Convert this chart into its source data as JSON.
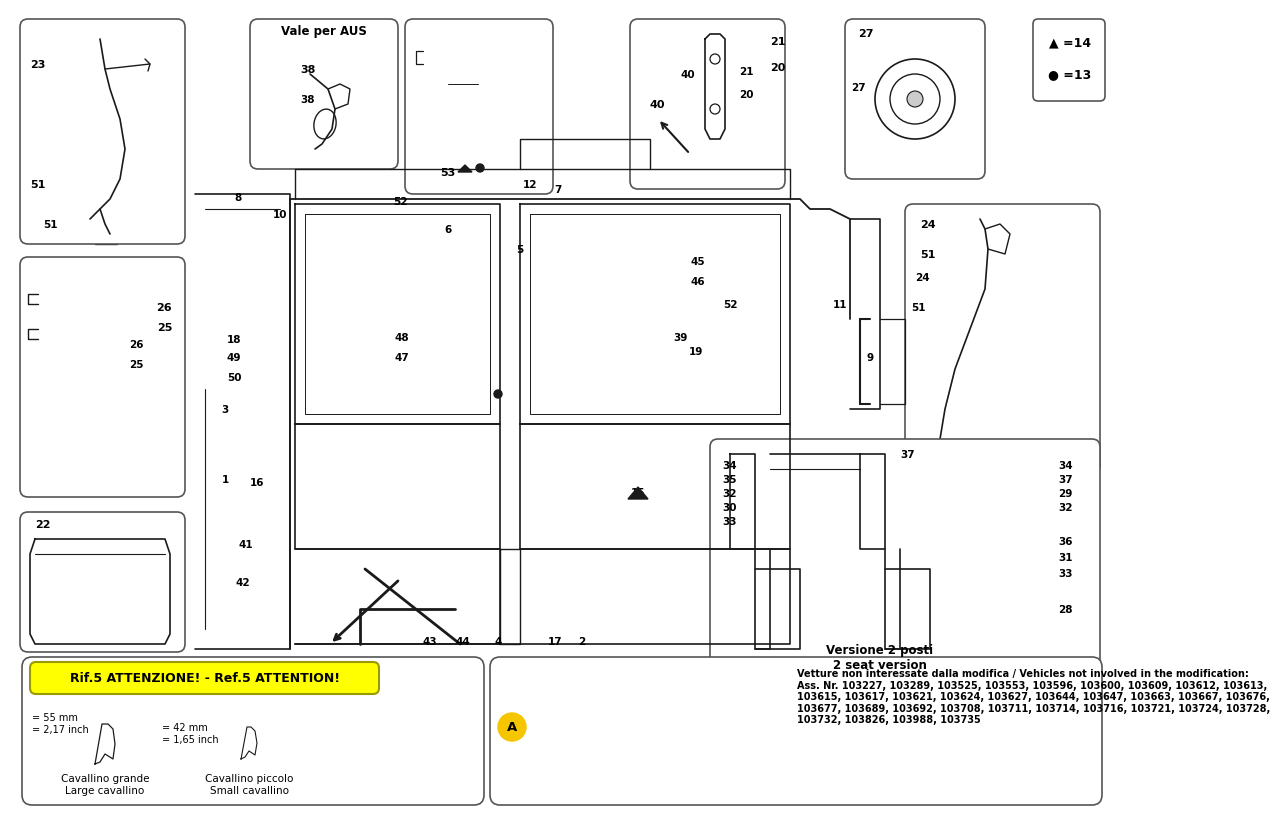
{
  "bg_color": "#ffffff",
  "line_color": "#1a1a1a",
  "gray_line": "#555555",
  "attention_text": "Rif.5 ATTENZIONE! - Ref.5 ATTENTION!",
  "attention_bg": "#ffff00",
  "cavallino_grande_dims": "= 55 mm\n= 2,17 inch",
  "cavallino_piccolo_dims": "= 42 mm\n= 1,65 inch",
  "cavallino_grande_label": "Cavallino grande\nLarge cavallino",
  "cavallino_piccolo_label": "Cavallino piccolo\nSmall cavallino",
  "versione_label": "Versione 2 posti\n2 seat version",
  "vehicles_line1": "Vetture non interessate dalla modifica / Vehicles not involved in the modification:",
  "vehicles_line2": "Ass. Nr. 103227, 103289, 103525, 103553, 103596, 103600, 103609, 103612, 103613,",
  "vehicles_line3": "103615, 103617, 103621, 103624, 103627, 103644, 103647, 103663, 103667, 103676,",
  "vehicles_line4": "103677, 103689, 103692, 103708, 103711, 103714, 103716, 103721, 103724, 103728,",
  "vehicles_line5": "103732, 103826, 103988, 103735",
  "triangle_legend": "▲ =14",
  "circle_legend": "● =13",
  "vale_per_aus": "Vale per AUS"
}
